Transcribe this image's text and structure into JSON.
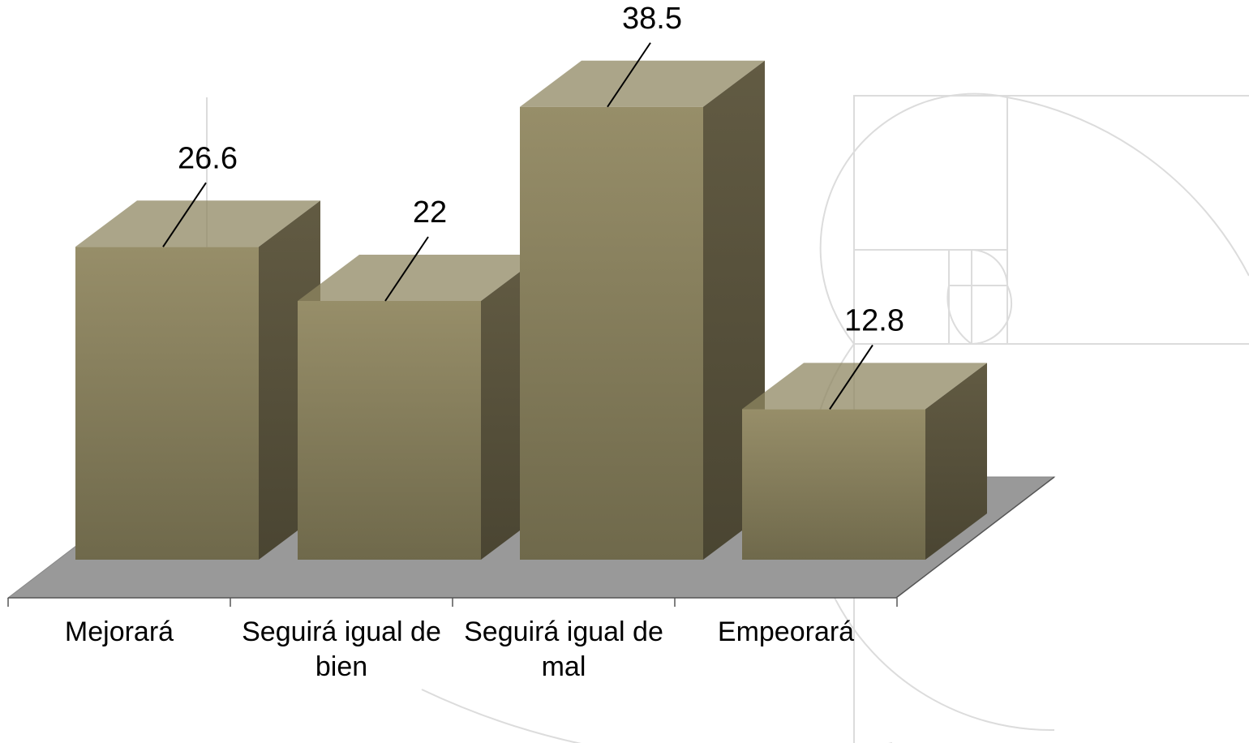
{
  "chart_data": {
    "type": "bar3d",
    "categories": [
      "Mejorará",
      "Seguirá igual de bien",
      "Seguirá igual de mal",
      "Empeorará"
    ],
    "values": [
      26.6,
      22,
      38.5,
      12.8
    ],
    "color": "#8f8762"
  }
}
